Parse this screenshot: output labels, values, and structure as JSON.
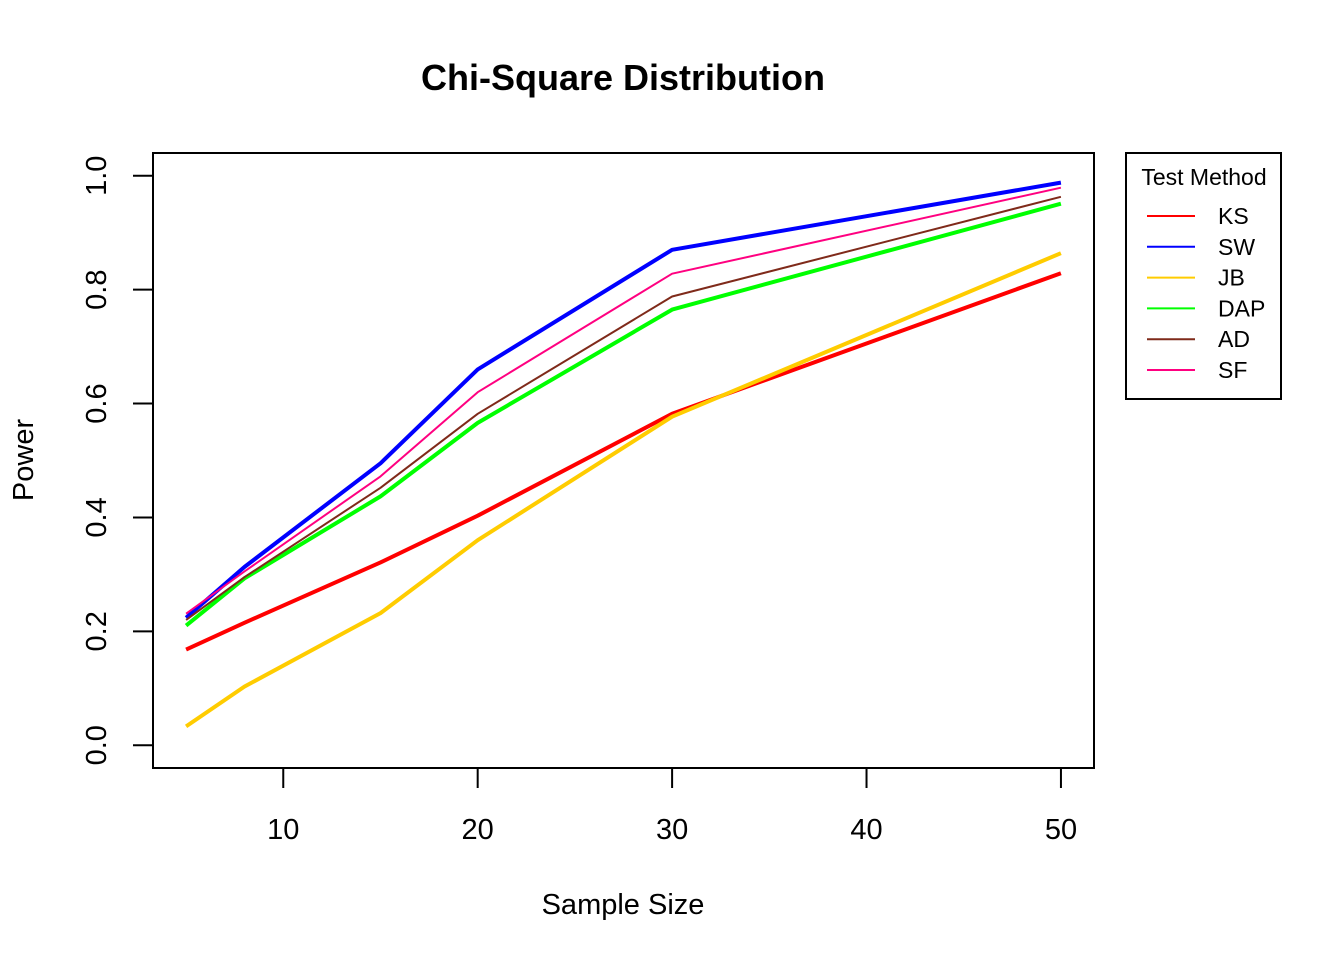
{
  "chart_data": {
    "type": "line",
    "title": "Chi-Square Distribution",
    "xlabel": "Sample Size",
    "ylabel": "Power",
    "xlim": [
      3.3,
      51.7
    ],
    "ylim": [
      -0.04,
      1.04
    ],
    "x_ticks": [
      10,
      20,
      30,
      40,
      50
    ],
    "y_ticks": [
      0.0,
      0.2,
      0.4,
      0.6,
      0.8,
      1.0
    ],
    "y_tick_labels": [
      "0.0",
      "0.2",
      "0.4",
      "0.6",
      "0.8",
      "1.0"
    ],
    "grid": false,
    "x": [
      5,
      8,
      15,
      20,
      30,
      50
    ],
    "legend": {
      "title": "Test Method",
      "position": "right"
    },
    "series": [
      {
        "name": "KS",
        "color": "#ff0000",
        "width": 4,
        "values": [
          0.168,
          0.215,
          0.321,
          0.403,
          0.582,
          0.829
        ]
      },
      {
        "name": "SW",
        "color": "#0000ff",
        "width": 4,
        "values": [
          0.224,
          0.313,
          0.495,
          0.66,
          0.87,
          0.988
        ]
      },
      {
        "name": "JB",
        "color": "#ffcc00",
        "width": 4,
        "values": [
          0.033,
          0.103,
          0.232,
          0.36,
          0.577,
          0.864
        ]
      },
      {
        "name": "DAP",
        "color": "#00ff00",
        "width": 4,
        "values": [
          0.21,
          0.293,
          0.437,
          0.566,
          0.765,
          0.951
        ]
      },
      {
        "name": "AD",
        "color": "#7f2a1a",
        "width": 2,
        "values": [
          0.22,
          0.295,
          0.452,
          0.582,
          0.788,
          0.963
        ]
      },
      {
        "name": "SF",
        "color": "#ff0080",
        "width": 2,
        "values": [
          0.231,
          0.305,
          0.472,
          0.62,
          0.828,
          0.979
        ]
      }
    ]
  }
}
